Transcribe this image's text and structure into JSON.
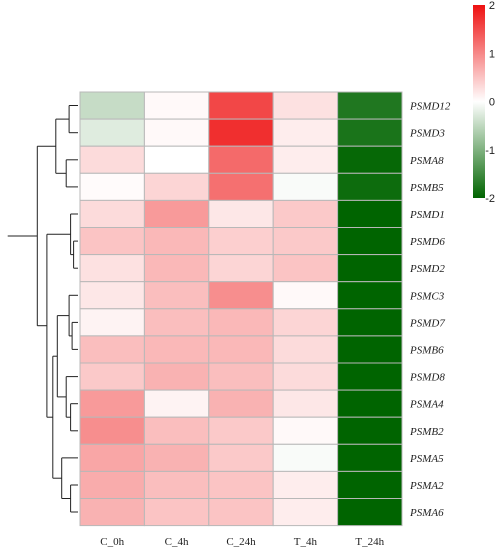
{
  "chart_data": {
    "type": "heatmap",
    "rows": [
      "PSMD12",
      "PSMD3",
      "PSMA8",
      "PSMB5",
      "PSMD1",
      "PSMD6",
      "PSMD2",
      "PSMC3",
      "PSMD7",
      "PSMB6",
      "PSMD8",
      "PSMA4",
      "PSMB2",
      "PSMA5",
      "PSMA2",
      "PSMA6"
    ],
    "columns": [
      "C_0h",
      "C_4h",
      "C_24h",
      "T_4h",
      "T_24h"
    ],
    "values": [
      [
        -0.45,
        0.05,
        1.55,
        0.25,
        -1.75
      ],
      [
        -0.25,
        0.05,
        1.75,
        0.15,
        -1.8
      ],
      [
        0.3,
        0.0,
        1.25,
        0.15,
        -1.95
      ],
      [
        0.03,
        0.35,
        1.2,
        -0.05,
        -1.9
      ],
      [
        0.3,
        0.85,
        0.2,
        0.45,
        -2.0
      ],
      [
        0.5,
        0.6,
        0.4,
        0.45,
        -2.0
      ],
      [
        0.25,
        0.6,
        0.35,
        0.5,
        -2.0
      ],
      [
        0.2,
        0.55,
        0.95,
        0.05,
        -2.0
      ],
      [
        0.1,
        0.55,
        0.6,
        0.35,
        -2.0
      ],
      [
        0.55,
        0.6,
        0.6,
        0.3,
        -2.0
      ],
      [
        0.45,
        0.65,
        0.55,
        0.3,
        -2.0
      ],
      [
        0.85,
        0.1,
        0.65,
        0.2,
        -2.0
      ],
      [
        0.95,
        0.55,
        0.45,
        0.05,
        -2.0
      ],
      [
        0.75,
        0.65,
        0.45,
        -0.05,
        -2.0
      ],
      [
        0.7,
        0.55,
        0.5,
        0.15,
        -2.0
      ],
      [
        0.65,
        0.5,
        0.5,
        0.15,
        -2.0
      ]
    ],
    "colorbar": {
      "ticks": [
        2,
        1,
        0,
        -1,
        -2
      ],
      "range": [
        -2,
        2
      ]
    },
    "colors": {
      "high": "#ee1111",
      "mid": "#ffffff",
      "low": "#006400",
      "grid": "#b8b8b8"
    },
    "row_dendrogram": true
  }
}
